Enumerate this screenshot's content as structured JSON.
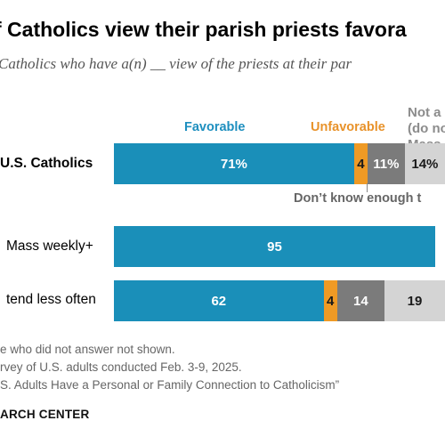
{
  "title": "f Catholics view their parish priests favora",
  "subtitle": "Catholics who have a(n) __ view of the priests at their par",
  "legend": {
    "favorable": "Favorable",
    "unfavorable": "Unfavorable",
    "not_attend": "Not a\n(do no\nMass",
    "dont_know": "Don’t know enough t"
  },
  "colors": {
    "favorable": "#1a8fb9",
    "unfavorable": "#ef9a25",
    "dont_know": "#7b7b7b",
    "not_attend": "#d4d4d4",
    "favorable_text": "#1e8fbf",
    "unfavorable_text": "#e8922a"
  },
  "chart_data": {
    "type": "bar",
    "orientation": "horizontal",
    "stacked": true,
    "categories": [
      "U.S. Catholics",
      "Mass weekly+",
      "tend less often"
    ],
    "series": [
      {
        "name": "Favorable",
        "values": [
          71,
          95,
          62
        ],
        "labels": [
          "71%",
          "95",
          "62"
        ]
      },
      {
        "name": "Unfavorable",
        "values": [
          4,
          null,
          4
        ],
        "labels": [
          "4",
          "",
          "4"
        ]
      },
      {
        "name": "Don’t know enough t",
        "values": [
          11,
          null,
          14
        ],
        "labels": [
          "11%",
          "",
          "14"
        ]
      },
      {
        "name": "Not a (do no Mass",
        "values": [
          14,
          null,
          19
        ],
        "labels": [
          "14%",
          "",
          "19"
        ]
      }
    ]
  },
  "notes": [
    "e who did not answer not shown.",
    "rvey of U.S. adults conducted Feb. 3-9, 2025.",
    "S. Adults Have a Personal or Family Connection to Catholicism”"
  ],
  "source_logo": "ARCH CENTER"
}
